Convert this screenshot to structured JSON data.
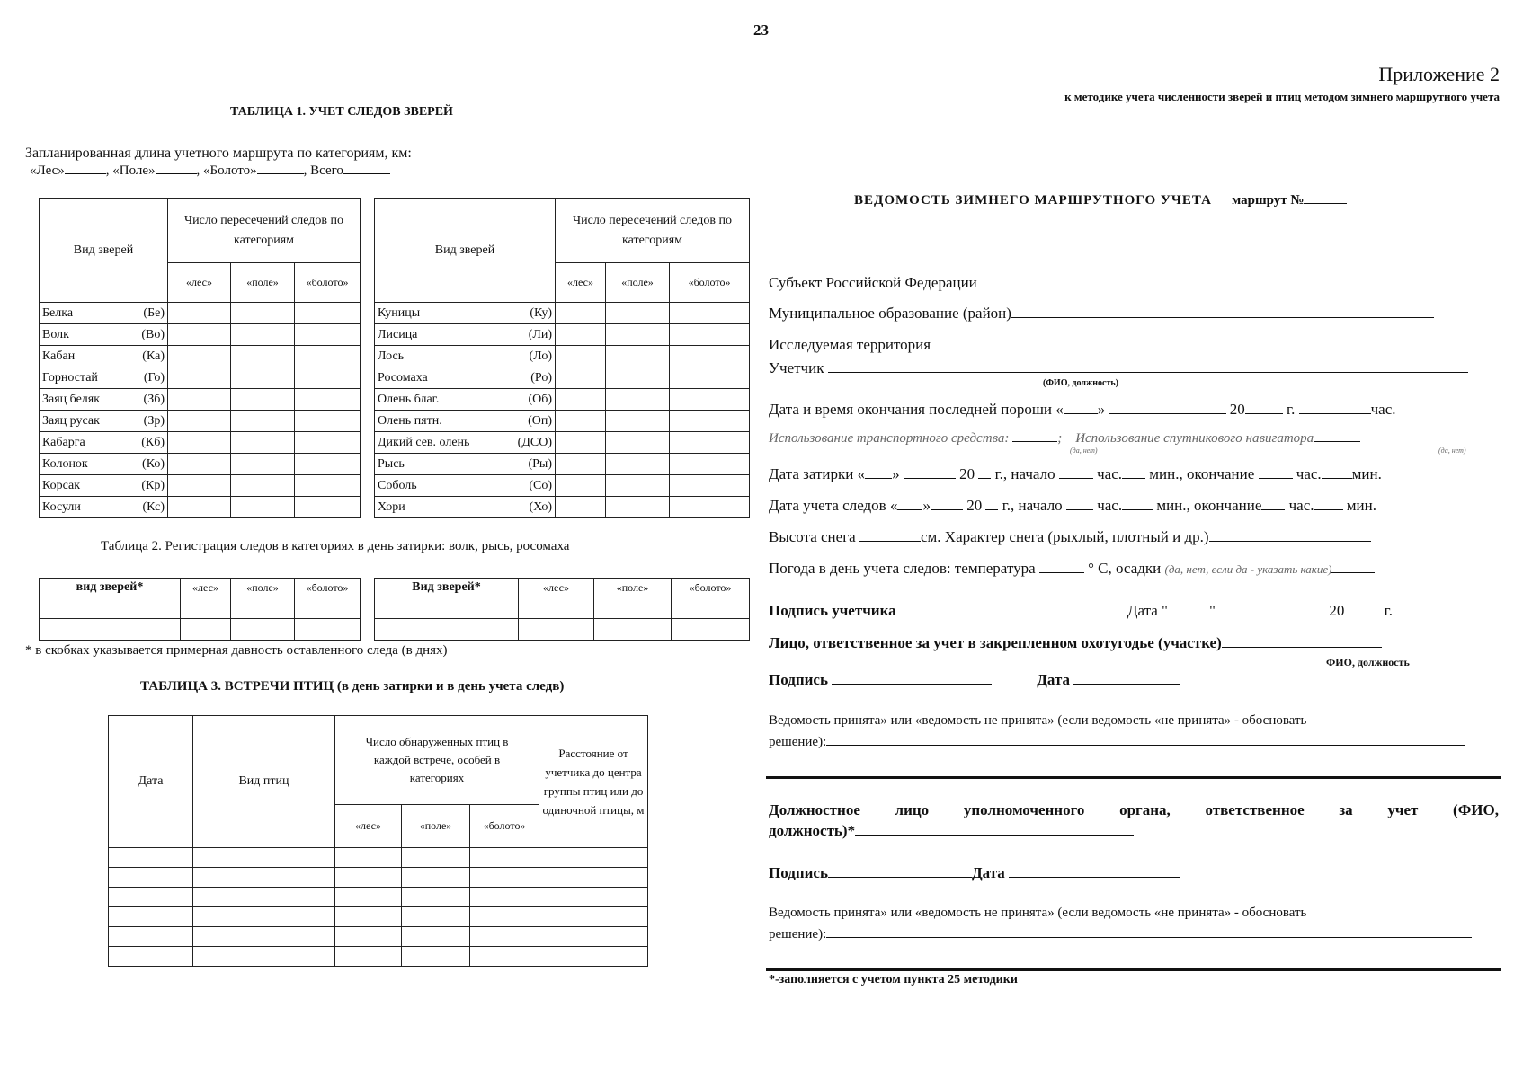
{
  "page_number": "23",
  "appendix": {
    "title": "Приложение 2",
    "subtitle": "к методике учета численности зверей и птиц методом зимнего маршрутного учета"
  },
  "table1": {
    "title": "ТАБЛИЦА 1.  УЧЕТ СЛЕДОВ ЗВЕРЕЙ",
    "planned_length": "Запланированная длина учетного маршрута по категориям, км:",
    "categories_line": [
      "«Лес»",
      ", «Поле»",
      ", «Болото»",
      ", Всего"
    ],
    "col_species": "Вид зверей",
    "col_group": "Число пересечений следов по категориям",
    "cols": [
      "«лес»",
      "«поле»",
      "«болото»"
    ],
    "left_rows": [
      {
        "name": "Белка",
        "code": "(Бе)"
      },
      {
        "name": "Волк",
        "code": "(Во)"
      },
      {
        "name": "Кабан",
        "code": "(Ка)"
      },
      {
        "name": "Горностай",
        "code": "(Го)"
      },
      {
        "name": "Заяц беляк",
        "code": "(Зб)"
      },
      {
        "name": "Заяц русак",
        "code": "(Зр)"
      },
      {
        "name": "Кабарга",
        "code": "(Кб)"
      },
      {
        "name": "Колонок",
        "code": "(Ко)"
      },
      {
        "name": "Корсак",
        "code": "(Кр)"
      },
      {
        "name": "Косули",
        "code": "(Кс)"
      }
    ],
    "right_rows": [
      {
        "name": "Куницы",
        "code": "(Ку)"
      },
      {
        "name": "Лисица",
        "code": "(Ли)"
      },
      {
        "name": "Лось",
        "code": "(Ло)"
      },
      {
        "name": "Росомаха",
        "code": "(Ро)"
      },
      {
        "name": "Олень благ.",
        "code": "(Об)"
      },
      {
        "name": "Олень пятн.",
        "code": "(Оп)"
      },
      {
        "name": "Дикий сев. олень",
        "code": "(ДСО)"
      },
      {
        "name": "Рысь",
        "code": "(Ры)"
      },
      {
        "name": "Соболь",
        "code": "(Со)"
      },
      {
        "name": "Хори",
        "code": "(Хо)"
      }
    ]
  },
  "table2": {
    "title": "Таблица 2. Регистрация следов в категориях в день затирки: волк, рысь, росомаха",
    "left_cols": [
      "вид зверей*",
      "«лес»",
      "«поле»",
      "«болото»"
    ],
    "right_cols": [
      "Вид  зверей*",
      "«лес»",
      "«поле»",
      "«болото»"
    ],
    "footnote": "* в скобках указывается примерная давность оставленного следа (в днях)"
  },
  "table3": {
    "title": "ТАБЛИЦА 3.  ВСТРЕЧИ ПТИЦ (в день затирки и в день учета следв)",
    "col_date": "Дата",
    "col_species": "Вид птиц",
    "col_group": "Число обнаруженных птиц в каждой встрече, особей в категориях",
    "cols": [
      "«лес»",
      "«поле»",
      "«болото»"
    ],
    "col_distance": "Расстояние от учетчика до центра группы птиц или до одиночной птицы, м"
  },
  "form": {
    "title": "ВЕДОМОСТЬ ЗИМНЕГО МАРШРУТНОГО УЧЕТА",
    "route": "маршрут  №",
    "subject": "Субъект Российской Федерации",
    "municipality": "Муниципальное образование (район)",
    "territory": "Исследуемая территория",
    "counter": "Учетчик",
    "counter_hint": "(ФИО, должность)",
    "last_snow": [
      "Дата и время окончания последней пороши «",
      "»",
      "20",
      "г.",
      "час."
    ],
    "transport": "Использование транспортного средства:",
    "yes_no": "(да, нет)",
    "navigator": "Использование  спутникового навигатора",
    "wipe": [
      "Дата затирки «",
      "»",
      "20",
      "г.,  начало",
      "час.",
      "мин., окончание",
      "час.",
      "мин."
    ],
    "tracks": [
      "Дата учета следов «",
      "»",
      "20",
      "г.,  начало",
      "час.",
      "мин.,  окончание",
      "час.",
      "мин."
    ],
    "snow": [
      "Высота снега",
      "см.  Характер снега (рыхлый, плотный и др.)"
    ],
    "weather": [
      "Погода в день учета следов: температура",
      "° С,  осадки",
      "(да, нет, если  да - указать какие)"
    ],
    "counter_sign": [
      "Подпись учетчика",
      "Дата \"",
      "\"",
      "20",
      "г."
    ],
    "responsible": "Лицо, ответственное за учет  в закрепленном  охотугодье (участке)",
    "responsible_hint": "ФИО, должность",
    "sign1": [
      "Подпись",
      "Дата"
    ],
    "accepted1": "Ведомость принята» или «ведомость не принята» (если ведомость «не принята» - обосновать",
    "decision1": "решение):",
    "official": "Должностное   лицо   уполномоченного   органа,   ответственное   за   учет   (ФИО,",
    "official2": "должность)*",
    "sign2": [
      "Подпись",
      "Дата"
    ],
    "accepted2": "Ведомость принята» или «ведомость не принята» (если ведомость «не принята» - обосновать",
    "decision2": "решение):",
    "footnote": "*-заполняется с учетом пункта 25 методики"
  }
}
